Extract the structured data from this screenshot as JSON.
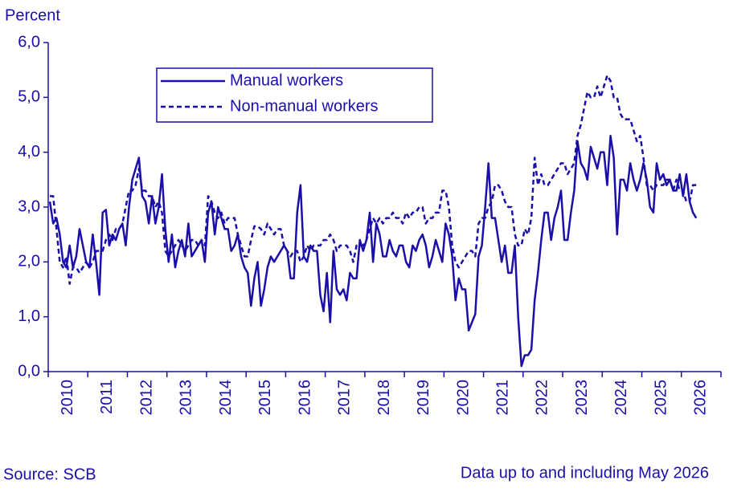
{
  "chart_data": {
    "type": "line",
    "y_label": "Percent",
    "source": "Source: SCB",
    "note": "Data up to and including May 2026",
    "ylim": [
      0,
      6
    ],
    "yticks": [
      {
        "value": 0,
        "label": "0,0"
      },
      {
        "value": 1,
        "label": "1,0"
      },
      {
        "value": 2,
        "label": "2,0"
      },
      {
        "value": 3,
        "label": "3,0"
      },
      {
        "value": 4,
        "label": "4,0"
      },
      {
        "value": 5,
        "label": "5,0"
      },
      {
        "value": 6,
        "label": "6,0"
      }
    ],
    "legend": "top-left",
    "categories": [
      null,
      null,
      null,
      null,
      null,
      null,
      "2010",
      null,
      null,
      null,
      null,
      null,
      null,
      null,
      null,
      null,
      null,
      null,
      "2011",
      null,
      null,
      null,
      null,
      null,
      null,
      null,
      null,
      null,
      null,
      null,
      "2012",
      null,
      null,
      null,
      null,
      null,
      null,
      null,
      null,
      null,
      null,
      null,
      "2013",
      null,
      null,
      null,
      null,
      null,
      null,
      null,
      null,
      null,
      null,
      null,
      "2014",
      null,
      null,
      null,
      null,
      null,
      null,
      null,
      null,
      null,
      null,
      null,
      "2015",
      null,
      null,
      null,
      null,
      null,
      null,
      null,
      null,
      null,
      null,
      null,
      "2016",
      null,
      null,
      null,
      null,
      null,
      null,
      null,
      null,
      null,
      null,
      null,
      "2017",
      null,
      null,
      null,
      null,
      null,
      null,
      null,
      null,
      null,
      null,
      null,
      "2018",
      null,
      null,
      null,
      null,
      null,
      null,
      null,
      null,
      null,
      null,
      null,
      "2019",
      null,
      null,
      null,
      null,
      null,
      null,
      null,
      null,
      null,
      null,
      null,
      "2020",
      null,
      null,
      null,
      null,
      null,
      null,
      null,
      null,
      null,
      null,
      null,
      "2021",
      null,
      null,
      null,
      null,
      null,
      null,
      null,
      null,
      null,
      null,
      null,
      "2022",
      null,
      null,
      null,
      null,
      null,
      null,
      null,
      null,
      null,
      null,
      null,
      "2023",
      null,
      null,
      null,
      null,
      null,
      null,
      null,
      null,
      null,
      null,
      null,
      "2024",
      null,
      null,
      null,
      null,
      null,
      null,
      null,
      null,
      null,
      null,
      null,
      "2025",
      null,
      null,
      null,
      null,
      null,
      null,
      null,
      null,
      null,
      null,
      null,
      "2026",
      null,
      null,
      null,
      null,
      null
    ],
    "series": [
      {
        "name": "Manual workers",
        "color": "#1a0fa8",
        "style": "solid",
        "values": [
          3.1,
          2.7,
          2.8,
          2.5,
          2.0,
          1.9,
          2.3,
          1.9,
          2.1,
          2.6,
          2.3,
          2.0,
          1.9,
          2.5,
          2.0,
          1.4,
          2.9,
          2.95,
          2.3,
          2.5,
          2.4,
          2.6,
          2.7,
          2.3,
          3.0,
          3.5,
          3.7,
          3.9,
          3.2,
          3.1,
          2.7,
          3.2,
          2.7,
          3.0,
          3.6,
          2.6,
          2.0,
          2.5,
          1.9,
          2.2,
          2.4,
          2.1,
          2.7,
          2.1,
          2.2,
          2.3,
          2.4,
          2.0,
          2.9,
          3.1,
          2.5,
          3.0,
          2.8,
          2.6,
          2.6,
          2.2,
          2.3,
          2.5,
          2.1,
          1.9,
          1.8,
          1.2,
          1.7,
          2.0,
          1.2,
          1.5,
          1.9,
          2.1,
          2.0,
          2.1,
          2.2,
          2.3,
          2.2,
          1.7,
          1.7,
          2.9,
          3.4,
          2.1,
          2.0,
          2.3,
          2.2,
          2.2,
          1.4,
          1.1,
          1.8,
          0.9,
          2.2,
          1.5,
          1.4,
          1.5,
          1.3,
          1.8,
          1.7,
          1.7,
          2.4,
          2.2,
          2.4,
          2.9,
          2.0,
          2.7,
          2.5,
          2.1,
          2.1,
          2.4,
          2.2,
          2.1,
          2.3,
          2.3,
          2.0,
          1.9,
          2.3,
          2.2,
          2.4,
          2.5,
          2.3,
          1.9,
          2.1,
          2.4,
          2.2,
          2.0,
          2.7,
          2.5,
          2.1,
          1.3,
          1.7,
          1.5,
          1.5,
          0.75,
          0.9,
          1.05,
          2.1,
          2.3,
          3.0,
          3.8,
          2.8,
          2.8,
          2.4,
          2.0,
          2.3,
          1.8,
          1.8,
          2.3,
          1.0,
          0.1,
          0.3,
          0.3,
          0.4,
          1.3,
          1.8,
          2.4,
          2.9,
          2.9,
          2.4,
          2.8,
          3.0,
          3.3,
          2.4,
          2.4,
          2.9,
          3.3,
          4.2,
          3.8,
          3.7,
          3.5,
          4.1,
          3.9,
          3.7,
          4.0,
          4.0,
          3.4,
          4.3,
          3.9,
          2.5,
          3.5,
          3.5,
          3.3,
          3.8,
          3.5,
          3.3,
          3.5,
          3.8,
          3.5,
          3.0,
          2.9,
          3.8,
          3.5,
          3.6,
          3.4,
          3.5,
          3.3,
          3.3,
          3.6,
          3.2,
          3.6,
          3.1,
          2.9,
          2.8,
          null,
          null,
          null,
          null,
          null,
          null,
          null
        ]
      },
      {
        "name": "Non-manual workers",
        "color": "#1a0fa8",
        "style": "dashed",
        "values": [
          3.2,
          3.2,
          2.6,
          2.0,
          1.9,
          2.1,
          1.6,
          1.9,
          1.9,
          1.8,
          1.9,
          2.0,
          1.9,
          2.0,
          2.2,
          2.2,
          2.2,
          2.4,
          2.5,
          2.4,
          2.6,
          2.6,
          2.7,
          3.0,
          3.3,
          3.3,
          3.4,
          3.7,
          3.3,
          3.3,
          3.2,
          3.2,
          3.0,
          3.1,
          2.9,
          2.2,
          2.1,
          2.2,
          2.3,
          2.4,
          2.3,
          2.2,
          2.3,
          2.4,
          2.4,
          2.3,
          2.4,
          2.3,
          3.2,
          3.1,
          2.9,
          2.8,
          2.9,
          2.7,
          2.8,
          2.8,
          2.8,
          2.5,
          2.3,
          2.1,
          2.1,
          2.4,
          2.65,
          2.65,
          2.6,
          2.5,
          2.7,
          2.6,
          2.5,
          2.6,
          2.6,
          2.3,
          2.2,
          2.1,
          2.2,
          2.2,
          2.0,
          2.1,
          2.3,
          2.2,
          2.3,
          2.3,
          2.3,
          2.4,
          2.4,
          2.5,
          2.4,
          2.2,
          2.3,
          2.3,
          2.3,
          2.2,
          2.0,
          2.3,
          2.3,
          2.3,
          2.4,
          2.6,
          2.8,
          2.7,
          2.8,
          2.7,
          2.8,
          2.8,
          2.9,
          2.8,
          2.8,
          2.7,
          2.9,
          2.8,
          2.9,
          2.9,
          3.0,
          3.0,
          2.7,
          2.8,
          2.8,
          2.9,
          2.9,
          3.3,
          3.3,
          3.0,
          2.3,
          2.0,
          1.9,
          2.0,
          2.1,
          2.2,
          2.2,
          2.1,
          2.7,
          2.8,
          2.8,
          3.0,
          3.1,
          3.4,
          3.4,
          3.3,
          3.1,
          3.0,
          3.0,
          2.5,
          2.3,
          2.3,
          2.6,
          2.5,
          2.8,
          3.9,
          3.4,
          3.6,
          3.4,
          3.4,
          3.5,
          3.6,
          3.7,
          3.8,
          3.8,
          3.6,
          3.7,
          3.8,
          4.3,
          4.5,
          4.8,
          5.1,
          5.0,
          5.0,
          5.2,
          5.0,
          5.2,
          5.4,
          5.3,
          5.0,
          5.0,
          4.7,
          4.6,
          4.6,
          4.6,
          4.4,
          4.2,
          4.3,
          3.9,
          3.4,
          3.4,
          3.3,
          3.4,
          3.4,
          3.4,
          3.5,
          3.5,
          3.3,
          3.5,
          3.3,
          3.3,
          3.1,
          3.1,
          3.4,
          3.4,
          null,
          null,
          null,
          null,
          null,
          null,
          null
        ]
      }
    ]
  }
}
